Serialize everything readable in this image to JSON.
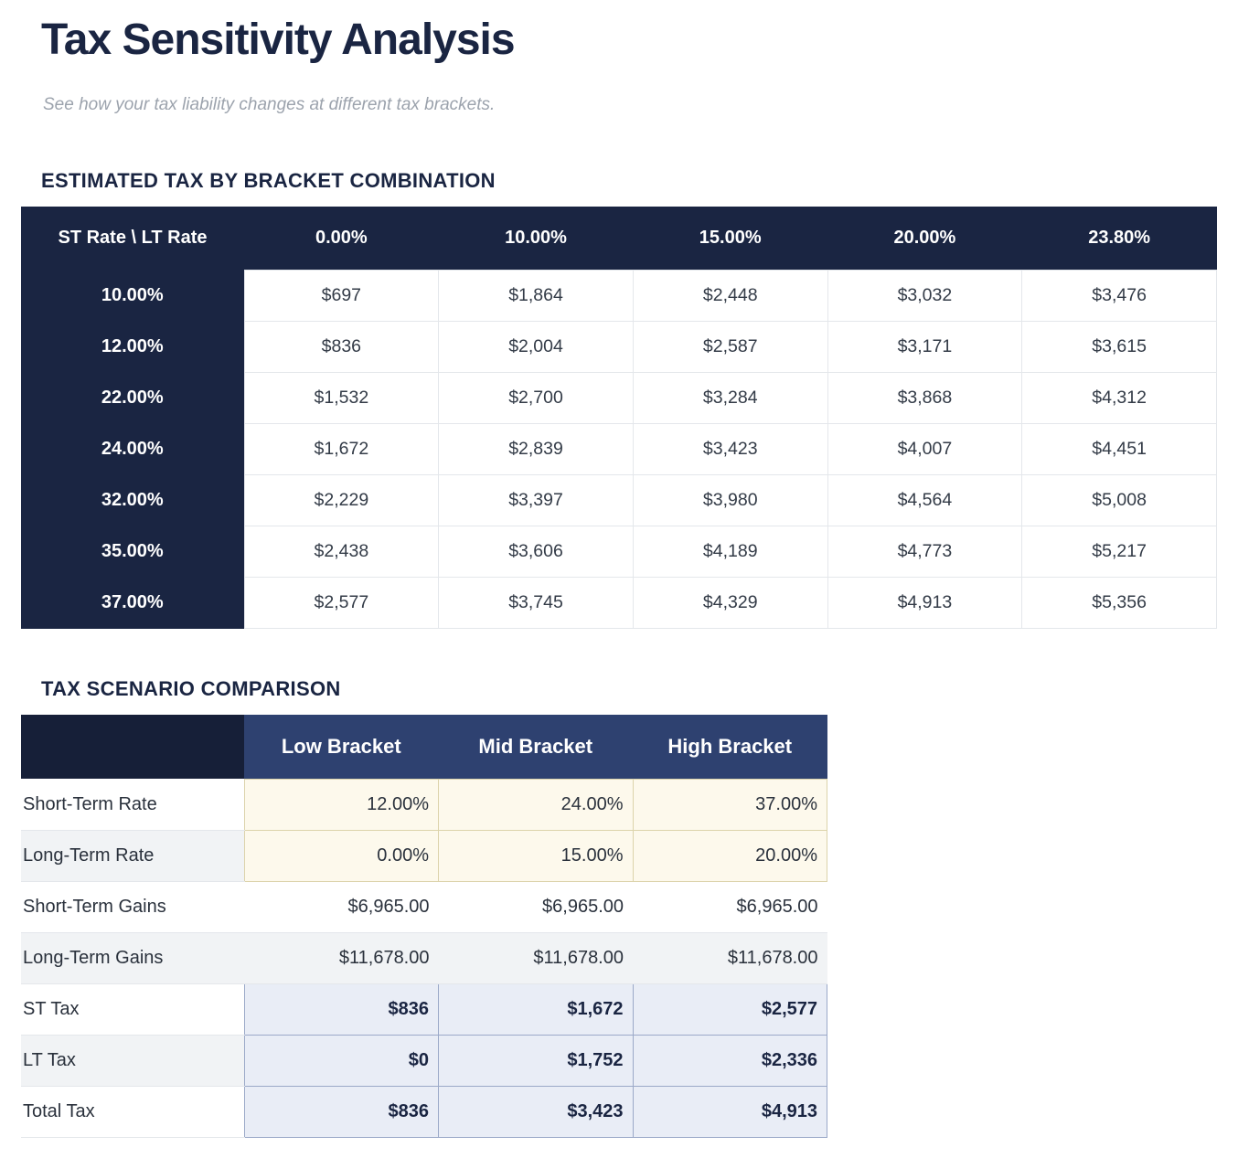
{
  "page": {
    "title": "Tax Sensitivity Analysis",
    "subtitle": "See how your tax liability changes at different tax brackets."
  },
  "colors": {
    "navy": "#1A2542",
    "navy_darker": "#161F38",
    "blue_header": "#2E4170",
    "cream_bg": "#FDF9EC",
    "cream_border": "#DCD3AB",
    "blue_cell_bg": "#E9EDF6",
    "blue_cell_border": "#9BA9C8",
    "row_alt": "#F1F3F5",
    "grid": "#E4E7EB"
  },
  "bracket_table": {
    "heading": "ESTIMATED TAX BY BRACKET COMBINATION",
    "corner_label": "ST Rate \\ LT Rate",
    "lt_rate_headers": [
      "0.00%",
      "10.00%",
      "15.00%",
      "20.00%",
      "23.80%"
    ],
    "rows": [
      {
        "st_rate": "10.00%",
        "values": [
          "$697",
          "$1,864",
          "$2,448",
          "$3,032",
          "$3,476"
        ]
      },
      {
        "st_rate": "12.00%",
        "values": [
          "$836",
          "$2,004",
          "$2,587",
          "$3,171",
          "$3,615"
        ]
      },
      {
        "st_rate": "22.00%",
        "values": [
          "$1,532",
          "$2,700",
          "$3,284",
          "$3,868",
          "$4,312"
        ]
      },
      {
        "st_rate": "24.00%",
        "values": [
          "$1,672",
          "$2,839",
          "$3,423",
          "$4,007",
          "$4,451"
        ]
      },
      {
        "st_rate": "32.00%",
        "values": [
          "$2,229",
          "$3,397",
          "$3,980",
          "$4,564",
          "$5,008"
        ]
      },
      {
        "st_rate": "35.00%",
        "values": [
          "$2,438",
          "$3,606",
          "$4,189",
          "$4,773",
          "$5,217"
        ]
      },
      {
        "st_rate": "37.00%",
        "values": [
          "$2,577",
          "$3,745",
          "$4,329",
          "$4,913",
          "$5,356"
        ]
      }
    ]
  },
  "scenario_table": {
    "heading": "TAX SCENARIO COMPARISON",
    "columns": [
      "Low Bracket",
      "Mid Bracket",
      "High Bracket"
    ],
    "rows": [
      {
        "label": "Short-Term Rate",
        "style": "rate",
        "values": [
          "12.00%",
          "24.00%",
          "37.00%"
        ]
      },
      {
        "label": "Long-Term Rate",
        "style": "rate",
        "values": [
          "0.00%",
          "15.00%",
          "20.00%"
        ]
      },
      {
        "label": "Short-Term Gains",
        "style": "plain",
        "values": [
          "$6,965.00",
          "$6,965.00",
          "$6,965.00"
        ]
      },
      {
        "label": "Long-Term Gains",
        "style": "plain",
        "values": [
          "$11,678.00",
          "$11,678.00",
          "$11,678.00"
        ]
      },
      {
        "label": "ST Tax",
        "style": "tax",
        "values": [
          "$836",
          "$1,672",
          "$2,577"
        ]
      },
      {
        "label": "LT Tax",
        "style": "tax",
        "values": [
          "$0",
          "$1,752",
          "$2,336"
        ]
      },
      {
        "label": "Total Tax",
        "style": "tax",
        "values": [
          "$836",
          "$3,423",
          "$4,913"
        ]
      }
    ]
  }
}
